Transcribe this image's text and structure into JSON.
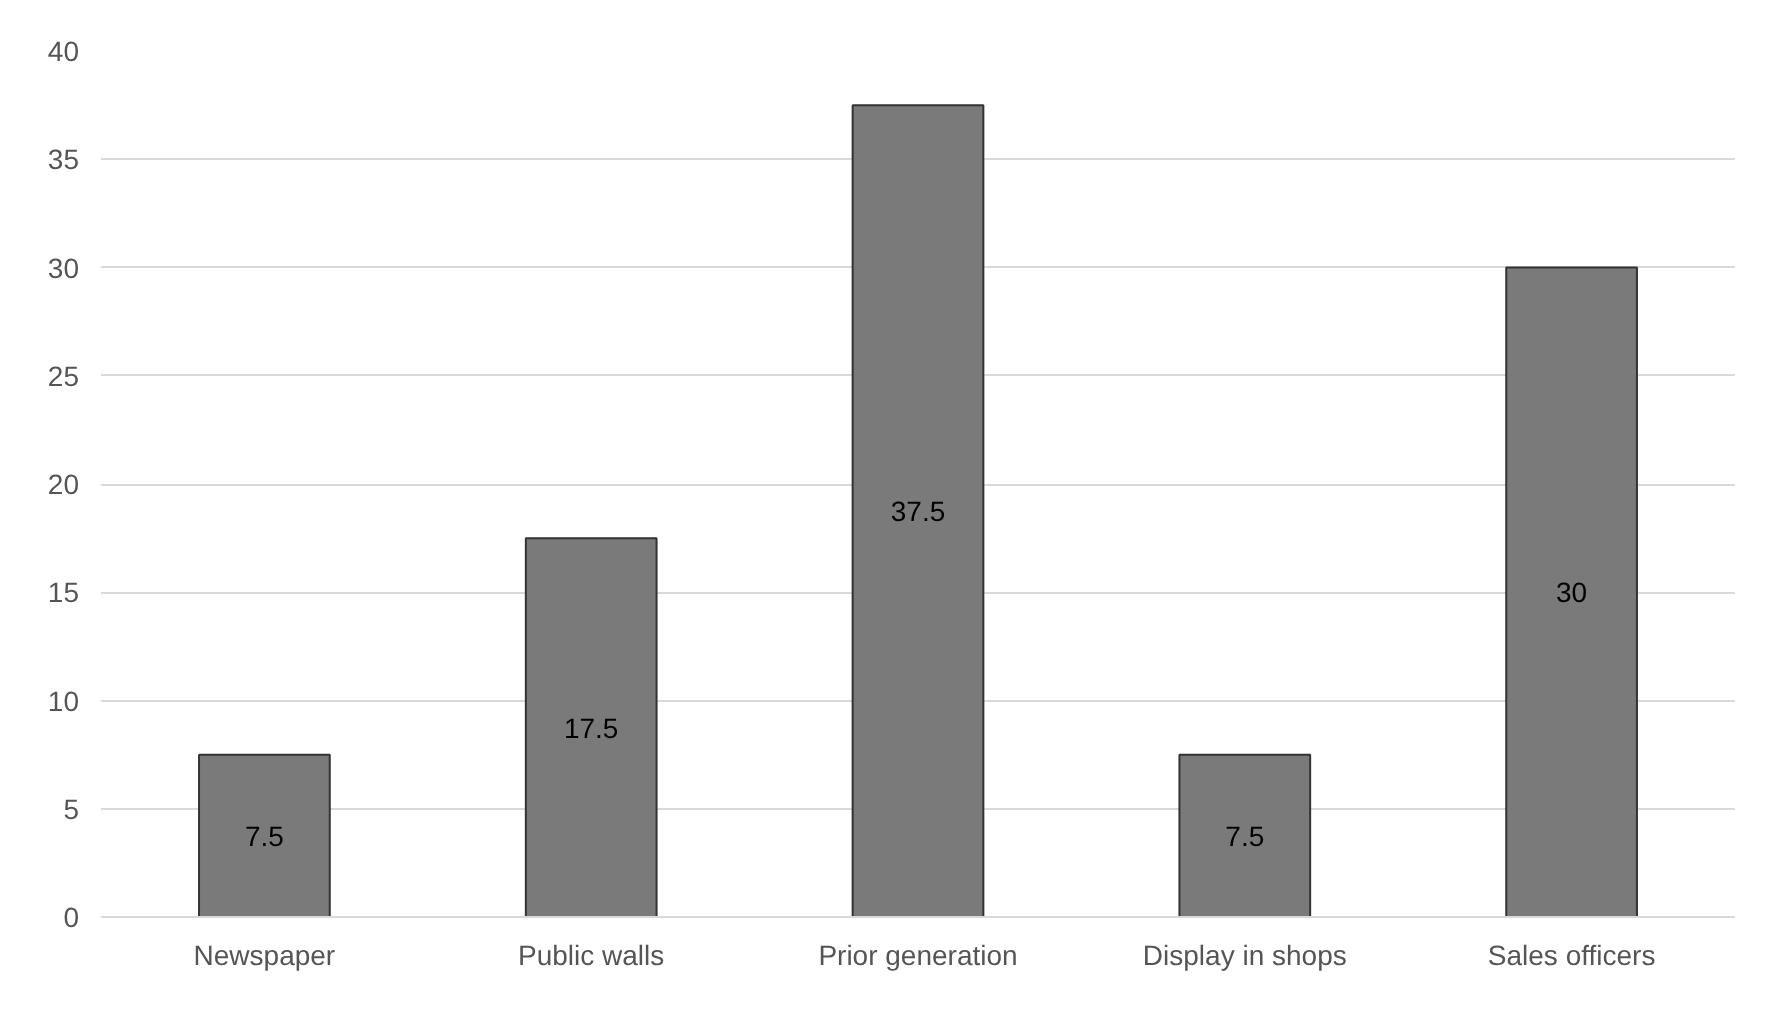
{
  "chart_data": {
    "type": "bar",
    "categories": [
      "Newspaper",
      "Public walls",
      "Prior generation",
      "Display in shops",
      "Sales officers"
    ],
    "values": [
      7.5,
      17.5,
      37.5,
      7.5,
      30
    ],
    "color": "#7a7a7a",
    "ylim": [
      0,
      40
    ],
    "yticks": [
      0,
      5,
      10,
      15,
      20,
      25,
      30,
      35,
      40
    ],
    "grid": "y",
    "data_labels": true
  }
}
